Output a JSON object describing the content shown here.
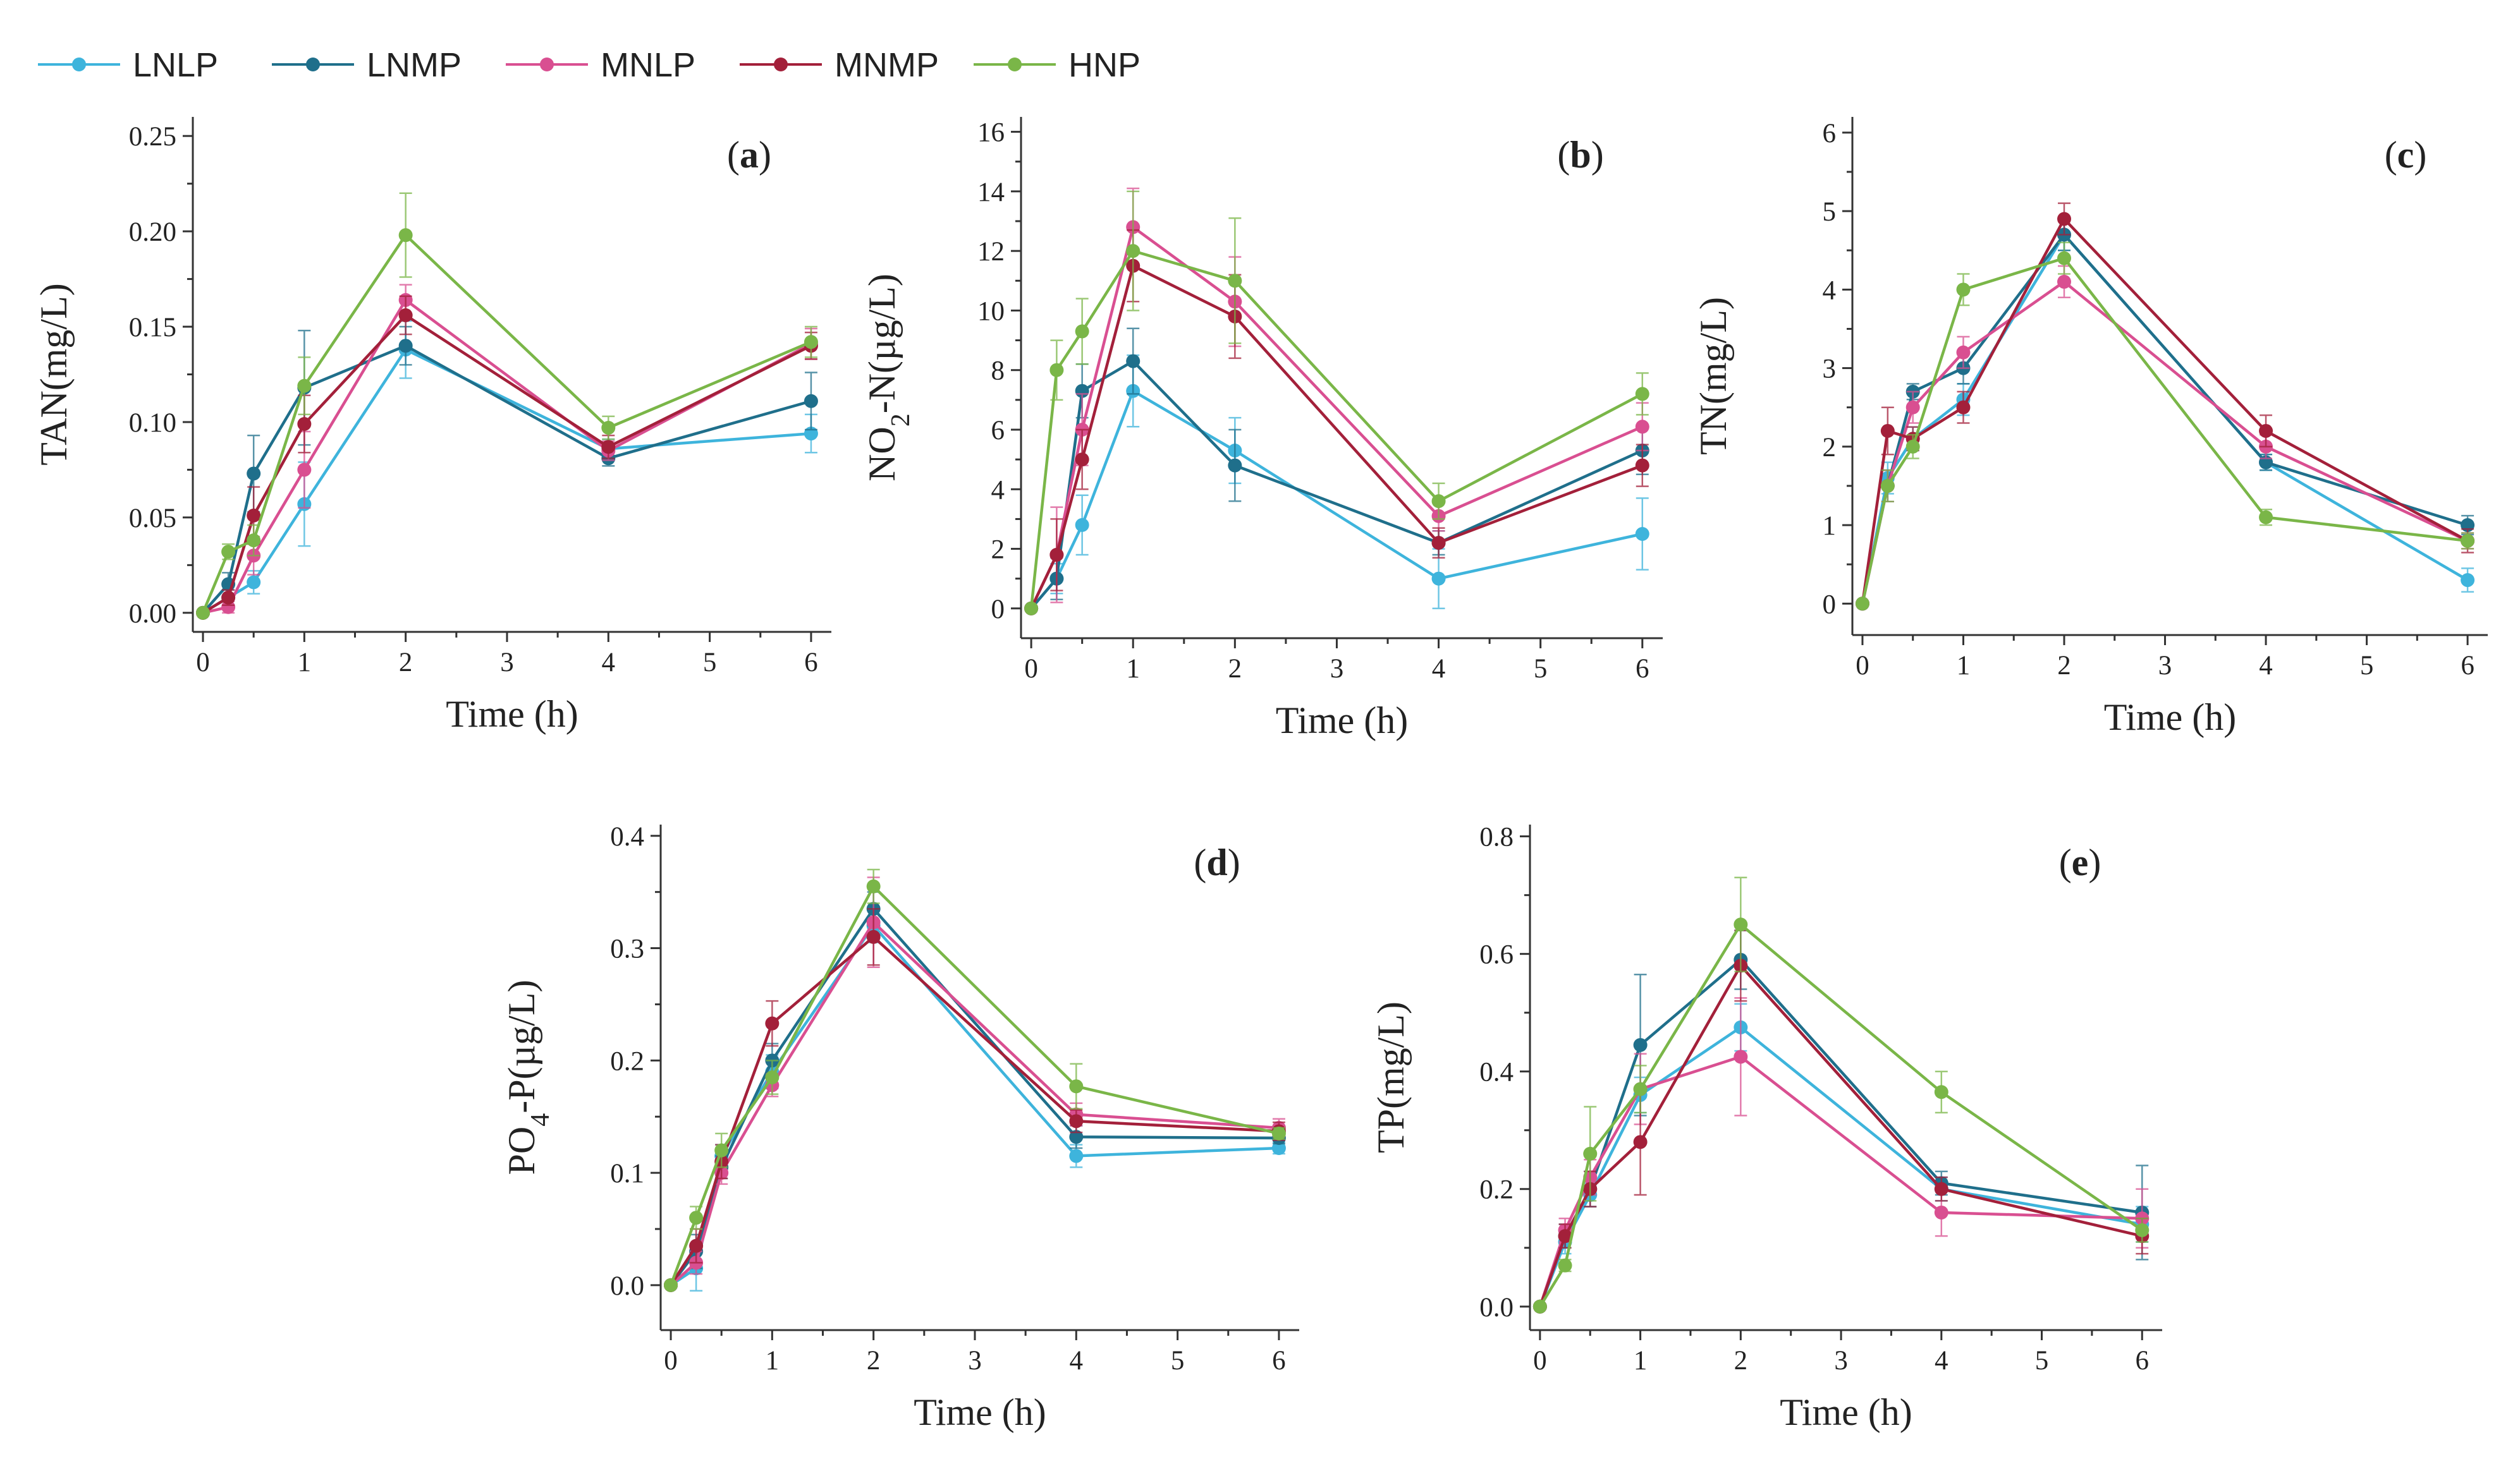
{
  "legend": [
    {
      "name": "LNLP",
      "color": "#3eb4dc"
    },
    {
      "name": "LNMP",
      "color": "#1f6f8b"
    },
    {
      "name": "MNLP",
      "color": "#d94f91"
    },
    {
      "name": "MNMP",
      "color": "#a3203a"
    },
    {
      "name": "HNP",
      "color": "#7ab648"
    }
  ],
  "chart_data": [
    {
      "type": "line",
      "panel_label": "a",
      "xlabel": "Time (h)",
      "ylabel": "TAN(mg/L)",
      "ylabel_parts": [
        {
          "t": "TAN(mg/L)",
          "sub": false
        }
      ],
      "x": [
        0,
        0.25,
        0.5,
        1,
        2,
        4,
        6
      ],
      "xlim": [
        -0.1,
        6.2
      ],
      "ylim": [
        -0.01,
        0.26
      ],
      "xticks": [
        "0",
        "1",
        "2",
        "3",
        "4",
        "5",
        "6"
      ],
      "yticks": [
        "0.00",
        "0.05",
        "0.10",
        "0.15",
        "0.20",
        "0.25"
      ],
      "series": [
        {
          "name": "LNLP",
          "values": [
            0,
            0.008,
            0.016,
            0.057,
            0.138,
            0.086,
            0.094
          ],
          "errors": [
            0,
            0.004,
            0.006,
            0.022,
            0.015,
            0.005,
            0.01
          ]
        },
        {
          "name": "LNMP",
          "values": [
            0,
            0.015,
            0.073,
            0.118,
            0.14,
            0.081,
            0.111
          ],
          "errors": [
            0,
            0.006,
            0.02,
            0.03,
            0.01,
            0.004,
            0.015
          ]
        },
        {
          "name": "MNLP",
          "values": [
            0,
            0.003,
            0.03,
            0.075,
            0.164,
            0.085,
            0.141
          ],
          "errors": [
            0,
            0.003,
            0.01,
            0.02,
            0.008,
            0.005,
            0.008
          ]
        },
        {
          "name": "MNMP",
          "values": [
            0,
            0.008,
            0.051,
            0.099,
            0.156,
            0.087,
            0.14
          ],
          "errors": [
            0,
            0.004,
            0.015,
            0.015,
            0.01,
            0.006,
            0.007
          ]
        },
        {
          "name": "HNP",
          "values": [
            0,
            0.032,
            0.038,
            0.119,
            0.198,
            0.097,
            0.142
          ],
          "errors": [
            0,
            0.004,
            0.008,
            0.015,
            0.022,
            0.006,
            0.008
          ]
        }
      ]
    },
    {
      "type": "line",
      "panel_label": "b",
      "xlabel": "Time (h)",
      "ylabel": "NO2-N(µg/L)",
      "ylabel_parts": [
        {
          "t": "NO",
          "sub": false
        },
        {
          "t": "2",
          "sub": true
        },
        {
          "t": "-N(µg/L)",
          "sub": false
        }
      ],
      "x": [
        0,
        0.25,
        0.5,
        1,
        2,
        4,
        6
      ],
      "xlim": [
        -0.1,
        6.2
      ],
      "ylim": [
        -1.0,
        16.5
      ],
      "xticks": [
        "0",
        "1",
        "2",
        "3",
        "4",
        "5",
        "6"
      ],
      "yticks": [
        "0",
        "2",
        "4",
        "6",
        "8",
        "10",
        "12",
        "14",
        "16"
      ],
      "series": [
        {
          "name": "LNLP",
          "values": [
            0,
            1.0,
            2.8,
            7.3,
            5.3,
            1.0,
            2.5
          ],
          "errors": [
            0,
            0.5,
            1.0,
            1.2,
            1.1,
            1.0,
            1.2
          ]
        },
        {
          "name": "LNMP",
          "values": [
            0,
            1.0,
            7.3,
            8.3,
            4.8,
            2.2,
            5.3
          ],
          "errors": [
            0,
            0.7,
            0.9,
            1.1,
            1.2,
            0.4,
            0.8
          ]
        },
        {
          "name": "MNLP",
          "values": [
            0,
            1.8,
            6.0,
            12.8,
            10.3,
            3.1,
            6.1
          ],
          "errors": [
            0,
            1.6,
            1.2,
            1.3,
            1.5,
            0.5,
            0.8
          ]
        },
        {
          "name": "MNMP",
          "values": [
            0,
            1.8,
            5.0,
            11.5,
            9.8,
            2.2,
            4.8
          ],
          "errors": [
            0,
            1.2,
            1.0,
            1.2,
            1.4,
            0.5,
            0.7
          ]
        },
        {
          "name": "HNP",
          "values": [
            0,
            8.0,
            9.3,
            12.0,
            11.0,
            3.6,
            7.2
          ],
          "errors": [
            0,
            1.0,
            1.1,
            2.0,
            2.1,
            0.6,
            0.7
          ]
        }
      ]
    },
    {
      "type": "line",
      "panel_label": "c",
      "xlabel": "Time (h)",
      "ylabel": "TN(mg/L)",
      "ylabel_parts": [
        {
          "t": "TN(mg/L)",
          "sub": false
        }
      ],
      "x": [
        0,
        0.25,
        0.5,
        1,
        2,
        4,
        6
      ],
      "xlim": [
        -0.1,
        6.2
      ],
      "ylim": [
        -0.4,
        6.2
      ],
      "xticks": [
        "0",
        "1",
        "2",
        "3",
        "4",
        "5",
        "6"
      ],
      "yticks": [
        "0",
        "1",
        "2",
        "3",
        "4",
        "5",
        "6"
      ],
      "series": [
        {
          "name": "LNLP",
          "values": [
            0,
            1.6,
            2.1,
            2.6,
            4.7,
            1.8,
            0.3
          ],
          "errors": [
            0,
            0.2,
            0.15,
            0.2,
            0.2,
            0.1,
            0.15
          ]
        },
        {
          "name": "LNMP",
          "values": [
            0,
            1.5,
            2.7,
            3.0,
            4.7,
            1.8,
            1.0
          ],
          "errors": [
            0,
            0.2,
            0.1,
            0.2,
            0.2,
            0.1,
            0.12
          ]
        },
        {
          "name": "MNLP",
          "values": [
            0,
            1.5,
            2.5,
            3.2,
            4.1,
            2.0,
            0.8
          ],
          "errors": [
            0,
            0.2,
            0.2,
            0.2,
            0.2,
            0.15,
            0.1
          ]
        },
        {
          "name": "MNMP",
          "values": [
            0,
            2.2,
            2.1,
            2.5,
            4.9,
            2.2,
            0.8
          ],
          "errors": [
            0,
            0.3,
            0.15,
            0.2,
            0.2,
            0.2,
            0.15
          ]
        },
        {
          "name": "HNP",
          "values": [
            0,
            1.5,
            2.0,
            4.0,
            4.4,
            1.1,
            0.8
          ],
          "errors": [
            0,
            0.2,
            0.15,
            0.2,
            0.2,
            0.1,
            0.1
          ]
        }
      ]
    },
    {
      "type": "line",
      "panel_label": "d",
      "xlabel": "Time (h)",
      "ylabel": "PO4-P(µg/L)",
      "ylabel_parts": [
        {
          "t": "PO",
          "sub": false
        },
        {
          "t": "4",
          "sub": true
        },
        {
          "t": "-P(µg/L)",
          "sub": false
        }
      ],
      "x": [
        0,
        0.25,
        0.5,
        1,
        2,
        4,
        6
      ],
      "xlim": [
        -0.1,
        6.2
      ],
      "ylim": [
        -0.04,
        0.41
      ],
      "xticks": [
        "0",
        "1",
        "2",
        "3",
        "4",
        "5",
        "6"
      ],
      "yticks": [
        "0.0",
        "0.1",
        "0.2",
        "0.3",
        "0.4"
      ],
      "series": [
        {
          "name": "LNLP",
          "values": [
            0,
            0.015,
            0.115,
            0.19,
            0.32,
            0.115,
            0.122
          ],
          "errors": [
            0,
            0.02,
            0.01,
            0.015,
            0.015,
            0.01,
            0.005
          ]
        },
        {
          "name": "LNMP",
          "values": [
            0,
            0.03,
            0.105,
            0.2,
            0.335,
            0.132,
            0.131
          ],
          "errors": [
            0,
            0.015,
            0.01,
            0.015,
            0.015,
            0.01,
            0.005
          ]
        },
        {
          "name": "MNLP",
          "values": [
            0,
            0.02,
            0.1,
            0.178,
            0.323,
            0.152,
            0.14
          ],
          "errors": [
            0,
            0.01,
            0.01,
            0.01,
            0.04,
            0.01,
            0.008
          ]
        },
        {
          "name": "MNMP",
          "values": [
            0,
            0.035,
            0.11,
            0.233,
            0.31,
            0.146,
            0.137
          ],
          "errors": [
            0,
            0.015,
            0.015,
            0.02,
            0.025,
            0.01,
            0.008
          ]
        },
        {
          "name": "HNP",
          "values": [
            0,
            0.06,
            0.12,
            0.185,
            0.355,
            0.177,
            0.135
          ],
          "errors": [
            0,
            0.01,
            0.015,
            0.015,
            0.015,
            0.02,
            0.005
          ]
        }
      ]
    },
    {
      "type": "line",
      "panel_label": "e",
      "xlabel": "Time (h)",
      "ylabel": "TP(mg/L)",
      "ylabel_parts": [
        {
          "t": "TP(mg/L)",
          "sub": false
        }
      ],
      "x": [
        0,
        0.25,
        0.5,
        1,
        2,
        4,
        6
      ],
      "xlim": [
        -0.1,
        6.2
      ],
      "ylim": [
        -0.04,
        0.82
      ],
      "xticks": [
        "0",
        "1",
        "2",
        "3",
        "4",
        "5",
        "6"
      ],
      "yticks": [
        "0.0",
        "0.2",
        "0.4",
        "0.6",
        "0.8"
      ],
      "series": [
        {
          "name": "LNLP",
          "values": [
            0,
            0.11,
            0.19,
            0.36,
            0.475,
            0.2,
            0.14
          ],
          "errors": [
            0,
            0.02,
            0.02,
            0.03,
            0.04,
            0.02,
            0.03
          ]
        },
        {
          "name": "LNMP",
          "values": [
            0,
            0.12,
            0.2,
            0.445,
            0.59,
            0.21,
            0.16
          ],
          "errors": [
            0,
            0.02,
            0.03,
            0.12,
            0.05,
            0.02,
            0.08
          ]
        },
        {
          "name": "MNLP",
          "values": [
            0,
            0.13,
            0.22,
            0.37,
            0.425,
            0.16,
            0.15
          ],
          "errors": [
            0,
            0.02,
            0.03,
            0.06,
            0.1,
            0.04,
            0.05
          ]
        },
        {
          "name": "MNMP",
          "values": [
            0,
            0.12,
            0.2,
            0.28,
            0.58,
            0.2,
            0.12
          ],
          "errors": [
            0,
            0.02,
            0.03,
            0.09,
            0.06,
            0.02,
            0.03
          ]
        },
        {
          "name": "HNP",
          "values": [
            0,
            0.07,
            0.26,
            0.37,
            0.65,
            0.365,
            0.13
          ],
          "errors": [
            0,
            0.01,
            0.08,
            0.04,
            0.08,
            0.035,
            0.02
          ]
        }
      ]
    }
  ]
}
